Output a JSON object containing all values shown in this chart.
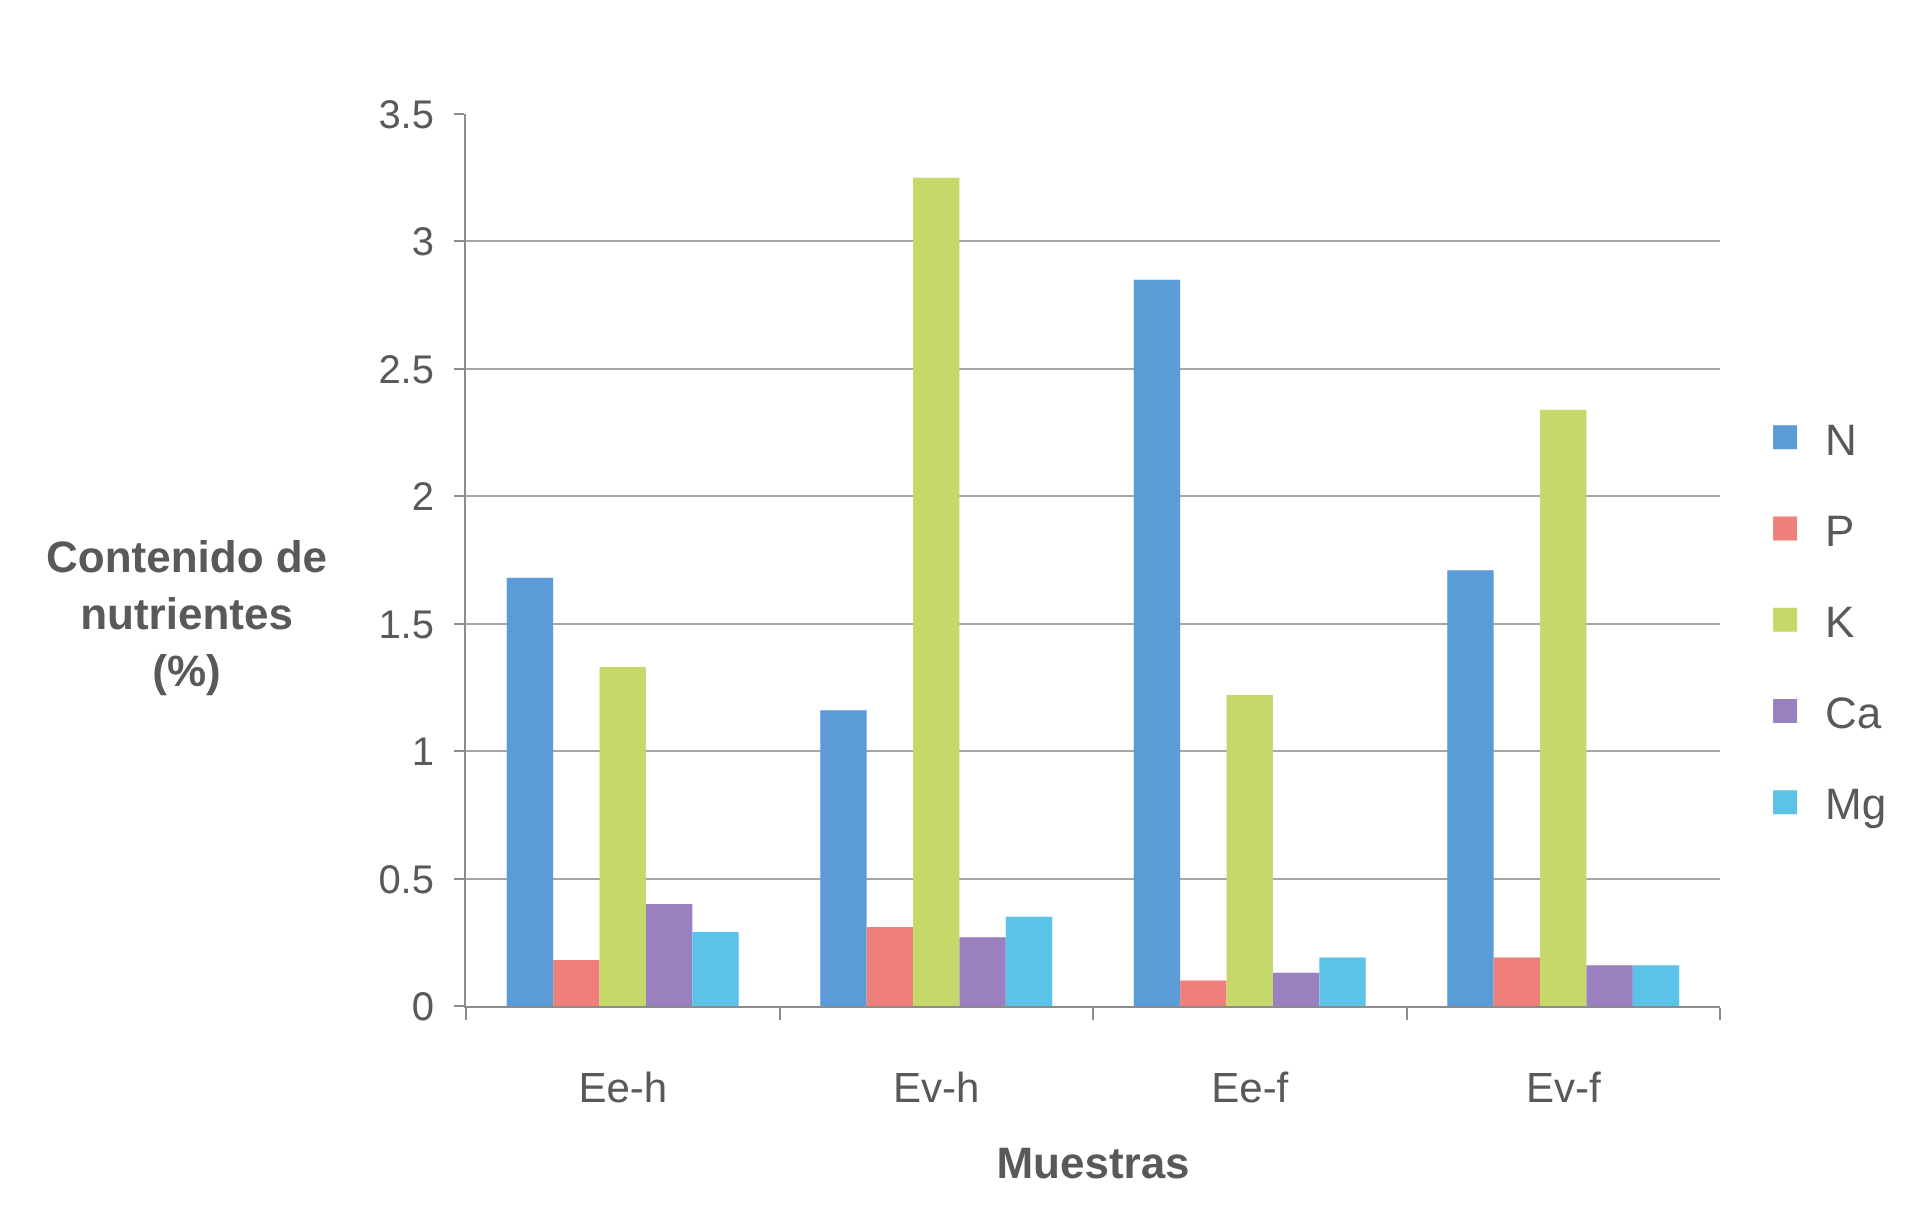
{
  "chart_data": {
    "type": "bar",
    "xlabel": "Muestras",
    "ylabel": "Contenido de\nnutrientes\n(%)",
    "categories": [
      "Ee-h",
      "Ev-h",
      "Ee-f",
      "Ev-f"
    ],
    "series": [
      {
        "name": "N",
        "color": "#5a9bd8",
        "values": [
          1.68,
          1.16,
          2.85,
          1.71
        ]
      },
      {
        "name": "P",
        "color": "#ef7f7a",
        "values": [
          0.18,
          0.31,
          0.1,
          0.19
        ]
      },
      {
        "name": "K",
        "color": "#c5d86a",
        "values": [
          1.33,
          3.25,
          1.22,
          2.34
        ]
      },
      {
        "name": "Ca",
        "color": "#9b80c0",
        "values": [
          0.4,
          0.27,
          0.13,
          0.16
        ]
      },
      {
        "name": "Mg",
        "color": "#5bc3e8",
        "values": [
          0.29,
          0.35,
          0.19,
          0.16
        ]
      }
    ],
    "ylim": [
      0,
      3.5
    ],
    "yticks": [
      0,
      0.5,
      1,
      1.5,
      2,
      2.5,
      3,
      3.5
    ],
    "grid": "y",
    "legend": "right"
  }
}
